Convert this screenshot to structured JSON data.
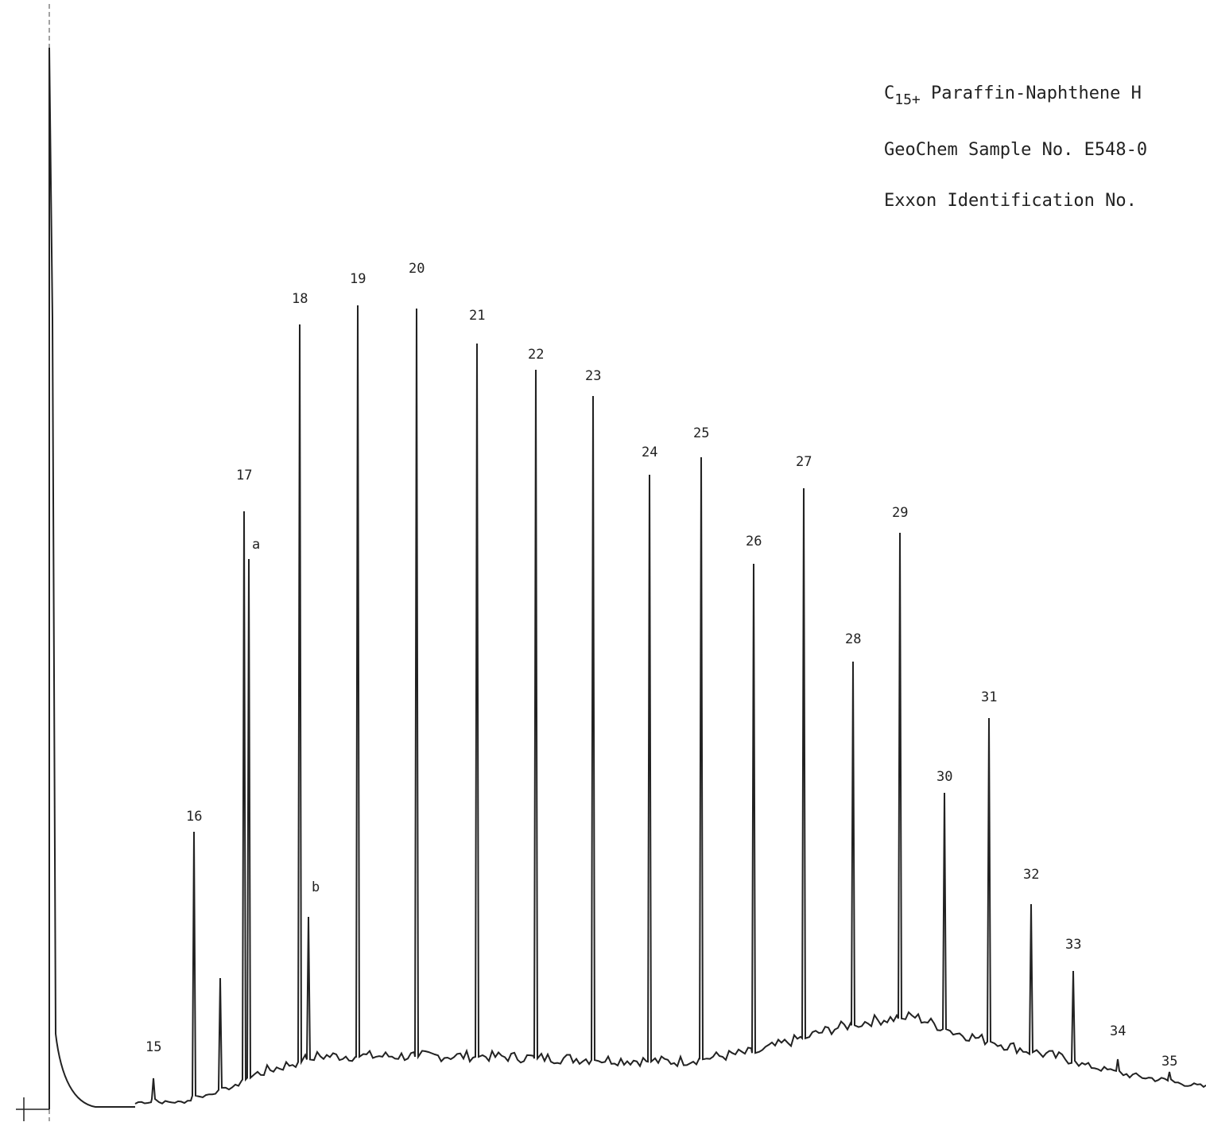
{
  "header": {
    "title_prefix": "C",
    "title_subscript": "15+",
    "title_rest": " Paraffin-Naphthene H",
    "sample_line": "GeoChem Sample No. E548-0",
    "exxon_line": "Exxon Identification No."
  },
  "chart_data": {
    "type": "line",
    "title": "C15+ Paraffin-Naphthene H",
    "xlabel": "",
    "ylabel": "",
    "grid": false,
    "xlim": [
      0,
      1517
    ],
    "ylim": [
      0,
      1416
    ],
    "baseline": [
      [
        60,
        1395
      ],
      [
        170,
        1388
      ],
      [
        230,
        1388
      ],
      [
        290,
        1370
      ],
      [
        330,
        1355
      ],
      [
        400,
        1335
      ],
      [
        600,
        1335
      ],
      [
        850,
        1342
      ],
      [
        950,
        1330
      ],
      [
        1050,
        1300
      ],
      [
        1100,
        1290
      ],
      [
        1150,
        1285
      ],
      [
        1200,
        1305
      ],
      [
        1260,
        1320
      ],
      [
        1300,
        1330
      ],
      [
        1350,
        1340
      ],
      [
        1420,
        1356
      ],
      [
        1517,
        1370
      ]
    ],
    "peaks": [
      {
        "label": "15",
        "x": 193,
        "top": 1356,
        "label_y": 1322
      },
      {
        "label": "16",
        "x": 244,
        "top": 1046,
        "label_y": 1032
      },
      {
        "label": "",
        "x": 277,
        "top": 1230
      },
      {
        "label": "17",
        "x": 307,
        "top": 643,
        "label_y": 603
      },
      {
        "label": "a",
        "x": 313,
        "top": 703,
        "label_y": 690
      },
      {
        "label": "18",
        "x": 377,
        "top": 408,
        "label_y": 381
      },
      {
        "label": "b",
        "x": 388,
        "top": 1153,
        "label_y": 1121
      },
      {
        "label": "19",
        "x": 450,
        "top": 384,
        "label_y": 356
      },
      {
        "label": "20",
        "x": 524,
        "top": 388,
        "label_y": 343
      },
      {
        "label": "21",
        "x": 600,
        "top": 432,
        "label_y": 402
      },
      {
        "label": "22",
        "x": 674,
        "top": 465,
        "label_y": 451
      },
      {
        "label": "23",
        "x": 746,
        "top": 498,
        "label_y": 478
      },
      {
        "label": "24",
        "x": 817,
        "top": 597,
        "label_y": 574
      },
      {
        "label": "25",
        "x": 882,
        "top": 575,
        "label_y": 550
      },
      {
        "label": "26",
        "x": 948,
        "top": 709,
        "label_y": 686
      },
      {
        "label": "27",
        "x": 1011,
        "top": 614,
        "label_y": 586
      },
      {
        "label": "28",
        "x": 1073,
        "top": 832,
        "label_y": 809
      },
      {
        "label": "29",
        "x": 1132,
        "top": 670,
        "label_y": 650
      },
      {
        "label": "30",
        "x": 1188,
        "top": 997,
        "label_y": 982
      },
      {
        "label": "31",
        "x": 1244,
        "top": 903,
        "label_y": 882
      },
      {
        "label": "32",
        "x": 1297,
        "top": 1137,
        "label_y": 1105
      },
      {
        "label": "33",
        "x": 1350,
        "top": 1221,
        "label_y": 1193
      },
      {
        "label": "34",
        "x": 1406,
        "top": 1332,
        "label_y": 1302
      },
      {
        "label": "35",
        "x": 1471,
        "top": 1348,
        "label_y": 1340
      }
    ]
  }
}
